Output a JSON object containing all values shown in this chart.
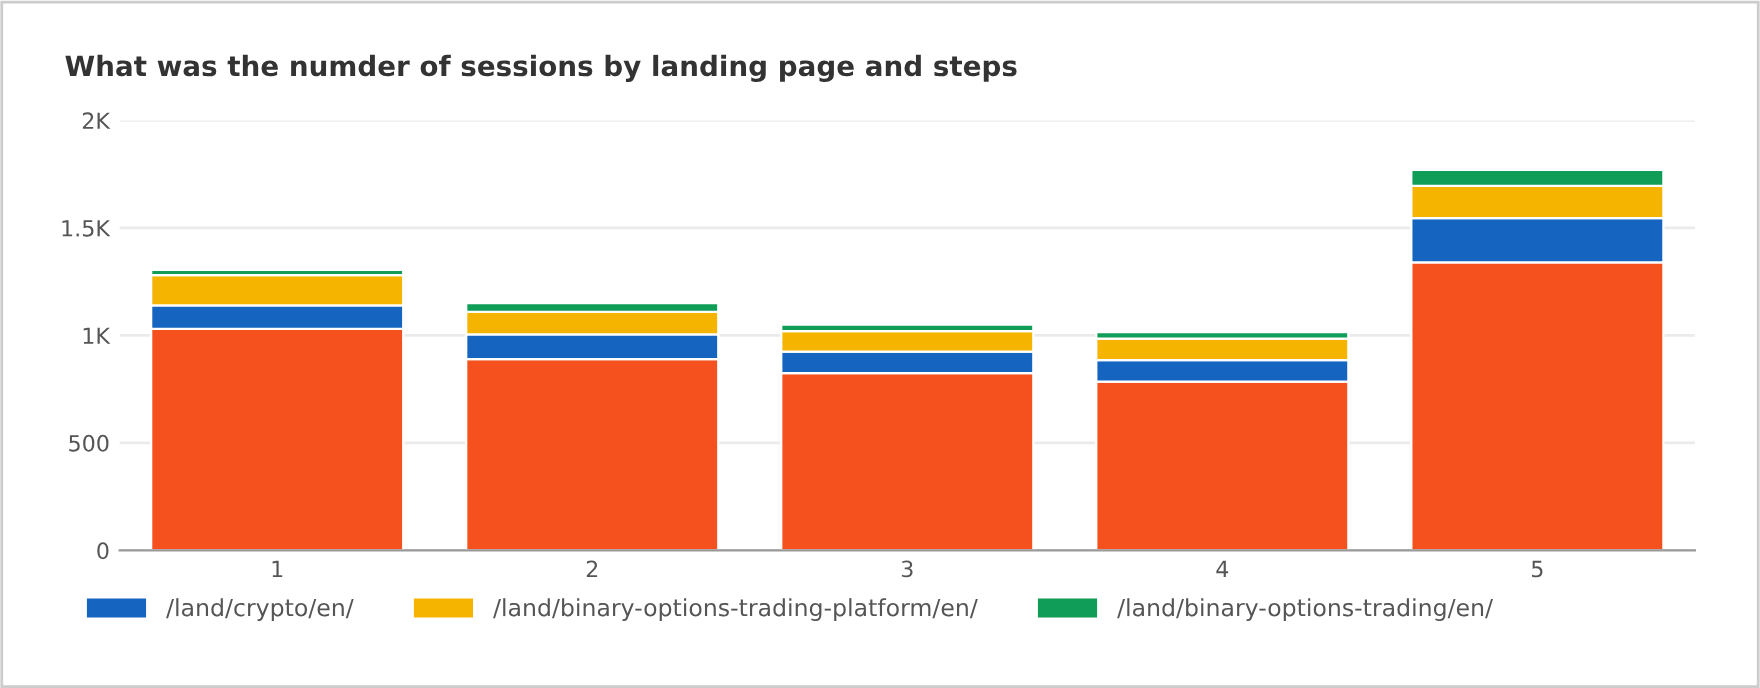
{
  "chart_data": {
    "type": "bar",
    "stacked": true,
    "title": "What was the numder of sessions by landing page and steps",
    "categories": [
      "1",
      "2",
      "3",
      "4",
      "5"
    ],
    "series": [
      {
        "color": "#f4511e",
        "values": [
          1030,
          890,
          825,
          785,
          1340
        ]
      },
      {
        "name": "/land/crypto/en/",
        "color": "#1565c0",
        "values": [
          110,
          115,
          100,
          100,
          205
        ]
      },
      {
        "name": "/land/binary-options-trading-platform/en/",
        "color": "#f4b400",
        "values": [
          140,
          105,
          95,
          100,
          150
        ]
      },
      {
        "name": "/land/binary-options-trading/en/",
        "color": "#0f9d58",
        "values": [
          25,
          40,
          30,
          30,
          75
        ]
      }
    ],
    "ylim": [
      0,
      2000
    ],
    "yticks": [
      0,
      500,
      {
        "value": 1000,
        "label": "1K"
      },
      {
        "value": 1500,
        "label": "1.5K"
      },
      {
        "value": 2000,
        "label": "2K"
      }
    ],
    "grid": "y",
    "legend": "bottom"
  }
}
